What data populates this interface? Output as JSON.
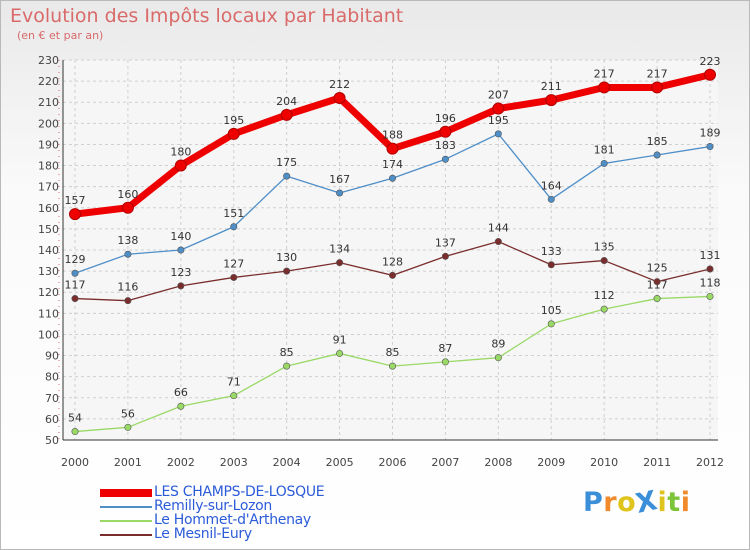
{
  "title": "Evolution des Impôts locaux par Habitant",
  "subtitle": "(en € et par an)",
  "logo": {
    "text": "ProXiti",
    "colors": [
      "#3b8fd9",
      "#f08a2c",
      "#e0c41e",
      "#3b8fd9",
      "#e0c41e",
      "#7cc43a",
      "#f08a2c"
    ]
  },
  "chart_data": {
    "type": "line",
    "x": [
      "2000",
      "2001",
      "2002",
      "2003",
      "2004",
      "2005",
      "2006",
      "2007",
      "2008",
      "2009",
      "2010",
      "2011",
      "2012"
    ],
    "ylim": [
      50,
      230
    ],
    "yticks": [
      50,
      60,
      70,
      80,
      90,
      100,
      110,
      120,
      130,
      140,
      150,
      160,
      170,
      180,
      190,
      200,
      210,
      220,
      230
    ],
    "grid": true,
    "legend": "bottom-left",
    "series": [
      {
        "name": "LES CHAMPS-DE-LOSQUE",
        "color": "#ee0000",
        "values": [
          157,
          160,
          180,
          195,
          204,
          212,
          188,
          196,
          207,
          211,
          217,
          217,
          223
        ]
      },
      {
        "name": "Remilly-sur-Lozon",
        "color": "#4f8fc8",
        "values": [
          129,
          138,
          140,
          151,
          175,
          167,
          174,
          183,
          195,
          164,
          181,
          185,
          189
        ]
      },
      {
        "name": "Le Hommet-d'Arthenay",
        "color": "#99d965",
        "values": [
          54,
          56,
          66,
          71,
          85,
          91,
          85,
          87,
          89,
          105,
          112,
          117,
          118
        ]
      },
      {
        "name": "Le Mesnil-Eury",
        "color": "#7a2d2d",
        "values": [
          117,
          116,
          123,
          127,
          130,
          134,
          128,
          137,
          144,
          133,
          135,
          125,
          131
        ]
      }
    ]
  }
}
